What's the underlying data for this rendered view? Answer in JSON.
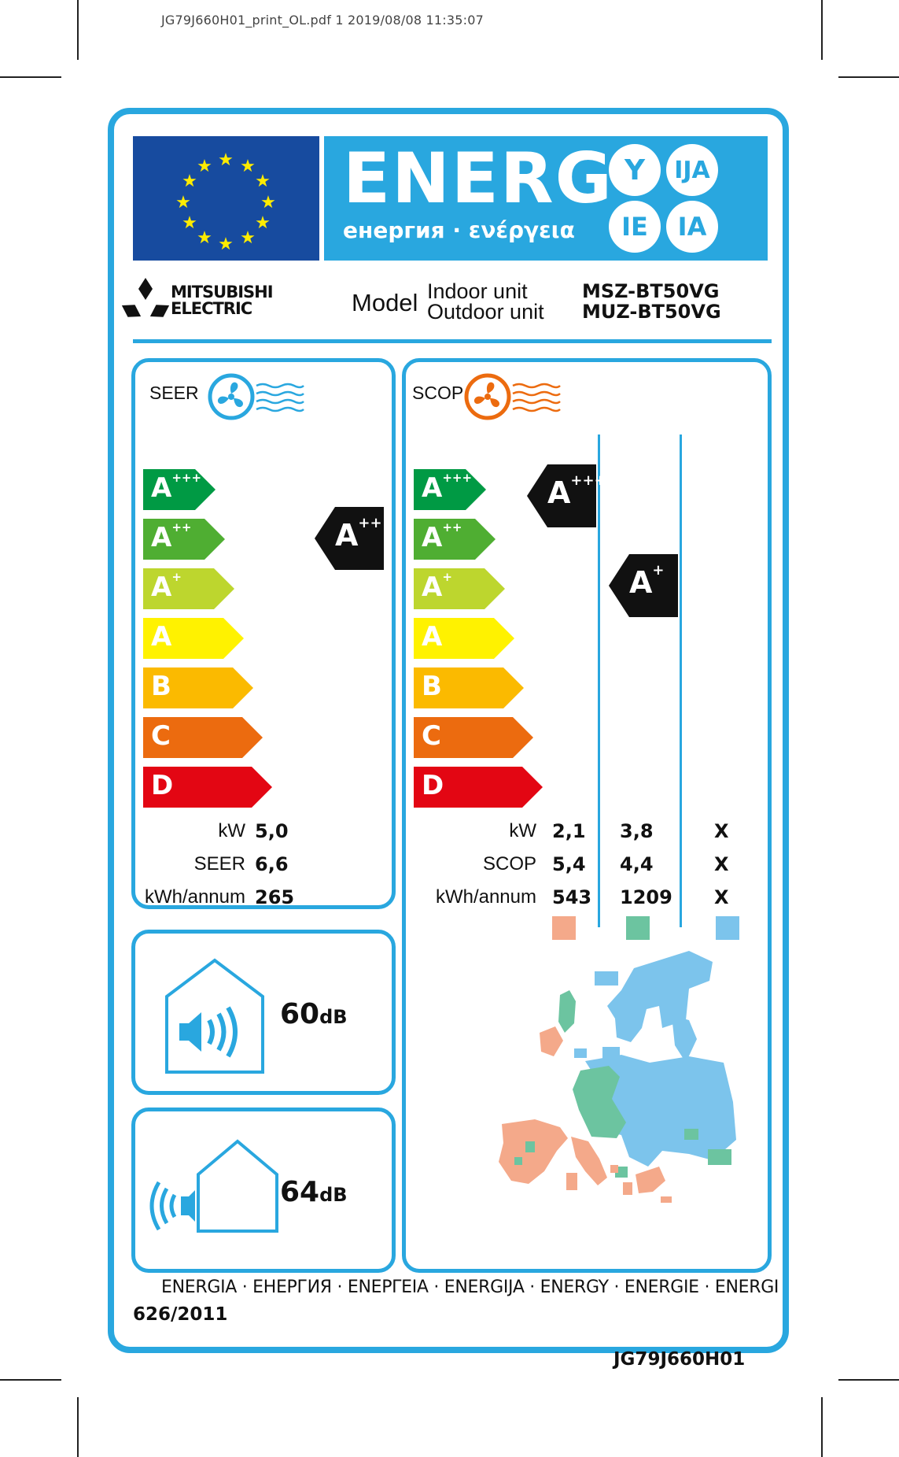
{
  "print_header": "JG79J660H01_print_OL.pdf   1   2019/08/08   11:35:07",
  "colors": {
    "label_blue": "#29a7df",
    "eu_blue": "#174b9f",
    "eu_star": "#ffec00",
    "class_colors": [
      "#009a44",
      "#4fae32",
      "#bdd62e",
      "#fff200",
      "#fbba00",
      "#ec6b0f",
      "#e30613"
    ],
    "zone_warmer": "#f4a98a",
    "zone_average": "#6cc4a0",
    "zone_colder": "#7cc4ec"
  },
  "energy": {
    "word": "ENERG",
    "subtitle": "енергия · ενέργεια",
    "circles": [
      "Y",
      "IJA",
      "IE",
      "IA"
    ]
  },
  "brand": {
    "name_line1": "MITSUBISHI",
    "name_line2": "ELECTRIC",
    "logo_icon": "three-diamonds-logo"
  },
  "model": {
    "label": "Model",
    "indoor_label": "Indoor unit",
    "indoor_code": "MSZ-BT50VG",
    "outdoor_label": "Outdoor unit",
    "outdoor_code": "MUZ-BT50VG"
  },
  "classes": [
    {
      "letter": "A",
      "plus": "+++"
    },
    {
      "letter": "A",
      "plus": "++"
    },
    {
      "letter": "A",
      "plus": "+"
    },
    {
      "letter": "A",
      "plus": ""
    },
    {
      "letter": "B",
      "plus": ""
    },
    {
      "letter": "C",
      "plus": ""
    },
    {
      "letter": "D",
      "plus": ""
    }
  ],
  "cooling": {
    "title": "SEER",
    "rating": {
      "letter": "A",
      "plus": "++"
    },
    "rows": [
      {
        "label": "kW",
        "value": "5,0"
      },
      {
        "label": "SEER",
        "value": "6,6"
      },
      {
        "label": "kWh/annum",
        "value": "265"
      }
    ]
  },
  "heating": {
    "title": "SCOP",
    "ratings": [
      {
        "zone": "warmer",
        "letter": "A",
        "plus": "+++"
      },
      {
        "zone": "average",
        "letter": "A",
        "plus": "+"
      }
    ],
    "row_labels": [
      "kW",
      "SCOP",
      "kWh/annum"
    ],
    "columns": [
      {
        "zone": "warmer",
        "values": [
          "2,1",
          "5,4",
          "543"
        ]
      },
      {
        "zone": "average",
        "values": [
          "3,8",
          "4,4",
          "1209"
        ]
      },
      {
        "zone": "colder",
        "values": [
          "X",
          "X",
          "X"
        ]
      }
    ]
  },
  "noise": {
    "indoor_value": "60",
    "outdoor_value": "64",
    "unit": "dB"
  },
  "footer": {
    "languages": "ENERGIA · ЕНЕРГИЯ · ΕΝΕΡΓΕΙΑ · ENERGIJA · ENERGY · ENERGIE · ENERGI",
    "regulation": "626/2011"
  },
  "label_code": "JG79J660H01"
}
